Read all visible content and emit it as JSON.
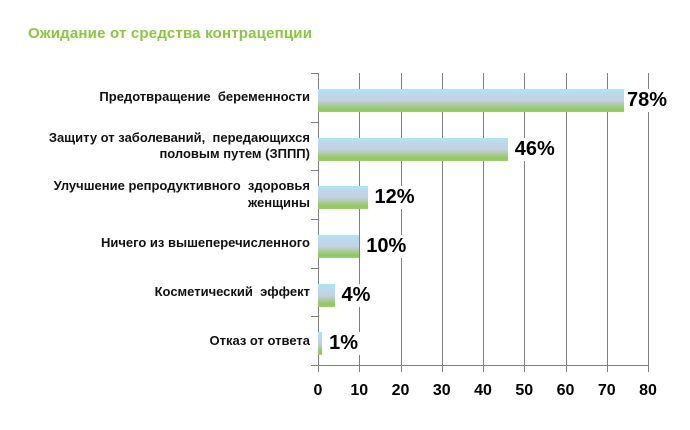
{
  "title": "Ожидание от средства контрацепции",
  "colors": {
    "title_green": "#8cc63f",
    "bar_gradient_top": "#aee4f5",
    "bar_gradient_mid": "#c7cfe2",
    "bar_gradient_bottom_dark": "#8fc95e",
    "bar_gradient_bottom_edge": "#9bd06b",
    "gridline_gray": "#7f7f7f",
    "label_text": "#111111",
    "value_text": "#000000"
  },
  "chart_data": {
    "type": "bar",
    "orientation": "horizontal",
    "title": "Ожидание от средства контрацепции",
    "categories": [
      "Предотвращение  беременности",
      "Защиту от заболеваний,  передающихся\nполовым путем (ЗППП)",
      "Улучшение репродуктивного  здоровья\nженщины",
      "Ничего из вышеперечисленного",
      "Косметический  эффект",
      "Отказ от ответа"
    ],
    "values": [
      78,
      46,
      12,
      10,
      4,
      1
    ],
    "value_labels": [
      "78%",
      "46%",
      "12%",
      "10%",
      "4%",
      "1%"
    ],
    "xlabel": "",
    "ylabel": "",
    "xlim": [
      0,
      80
    ],
    "xticks": [
      0,
      10,
      20,
      30,
      40,
      50,
      60,
      70,
      80
    ],
    "xtick_labels": [
      "0",
      "10",
      "20",
      "30",
      "40",
      "50",
      "60",
      "70",
      "80"
    ],
    "grid": "vertical-major",
    "legend": "none",
    "data_labels": "outside-end"
  }
}
